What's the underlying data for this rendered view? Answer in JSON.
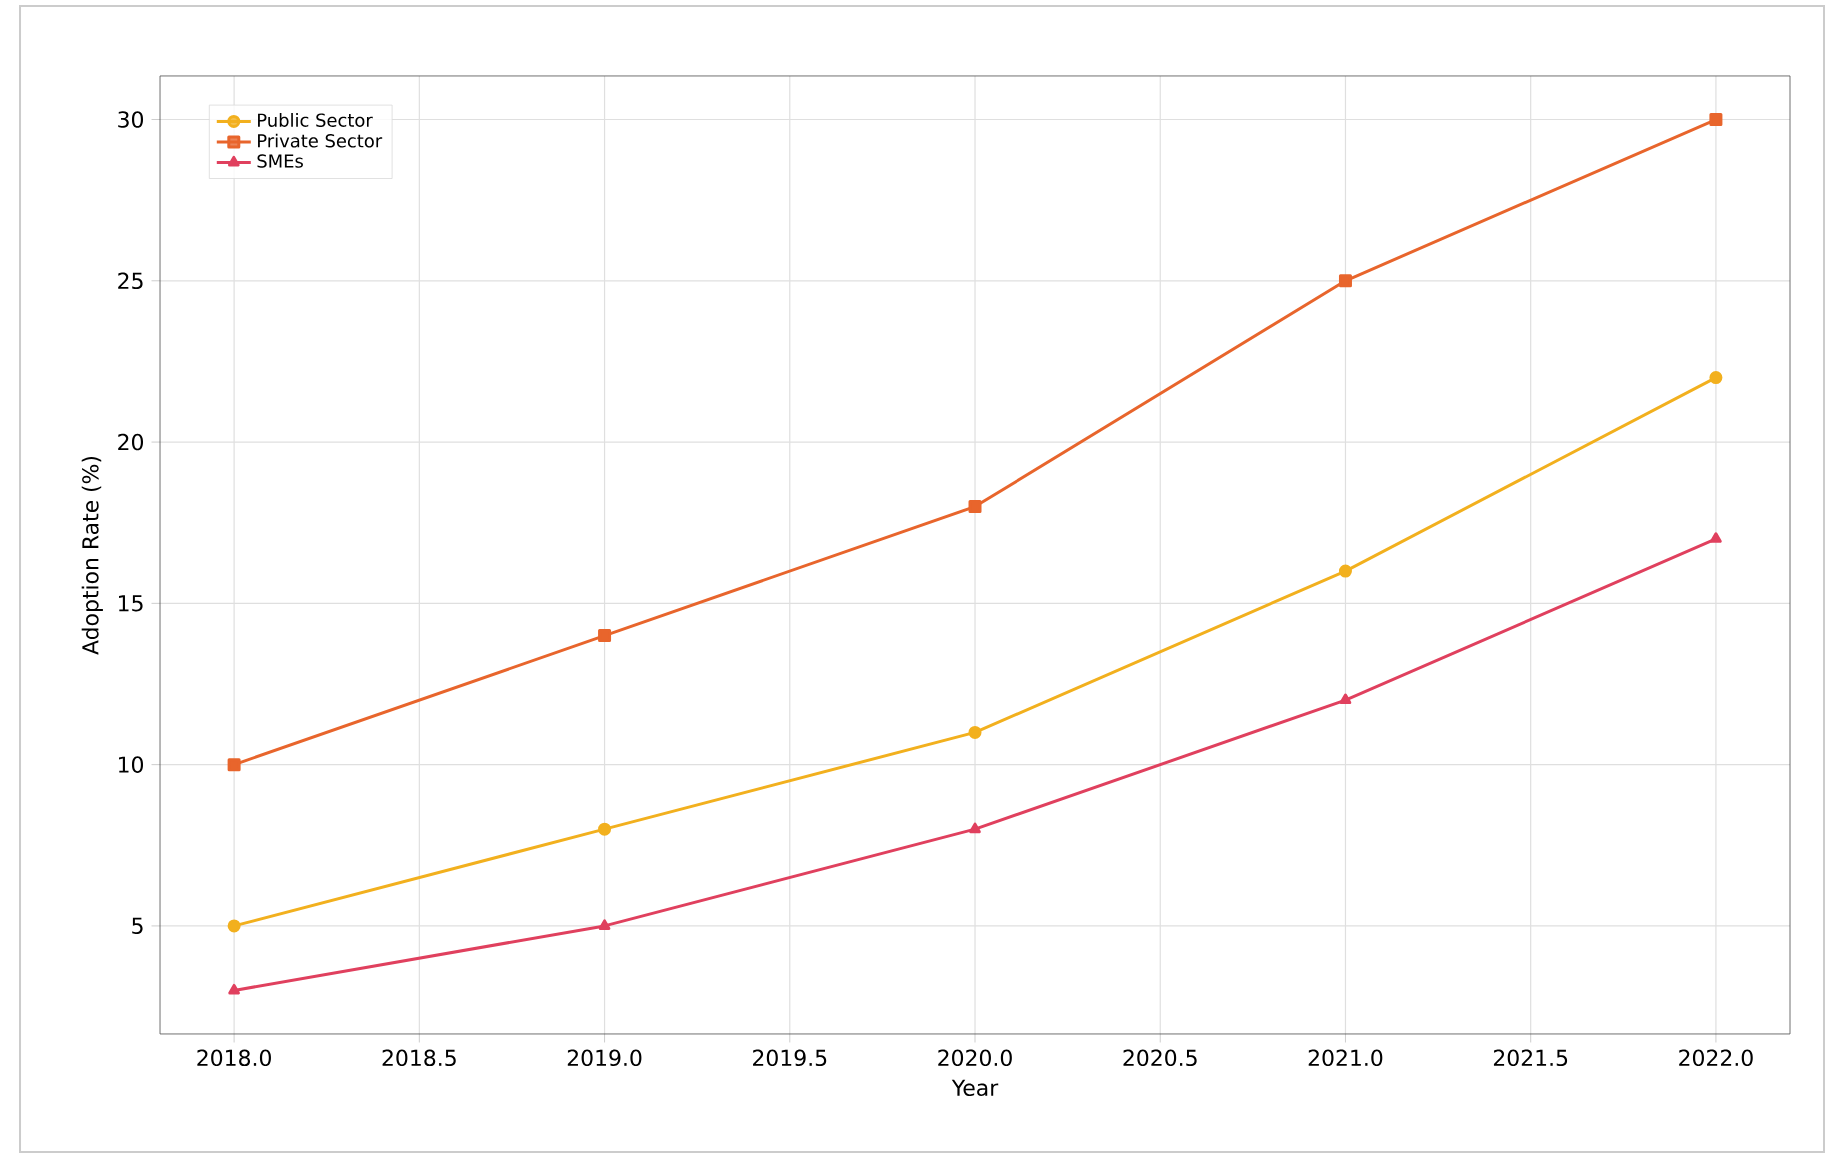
{
  "chart_data": {
    "type": "line",
    "xlabel": "Year",
    "ylabel": "Adoption Rate (%)",
    "x": [
      2018,
      2019,
      2020,
      2021,
      2022
    ],
    "series": [
      {
        "name": "Public Sector",
        "color": "#f2b01e",
        "marker": "circle",
        "values": [
          5,
          8,
          11,
          16,
          22
        ]
      },
      {
        "name": "Private Sector",
        "color": "#e8652c",
        "marker": "square",
        "values": [
          10,
          14,
          18,
          25,
          30
        ]
      },
      {
        "name": "SMEs",
        "color": "#e0405e",
        "marker": "triangle",
        "values": [
          3,
          5,
          8,
          12,
          17
        ]
      }
    ],
    "xlim": [
      2017.8,
      2022.2
    ],
    "ylim": [
      1.65,
      31.35
    ],
    "xticks": [
      {
        "value": 2018,
        "label": "2018.0"
      },
      {
        "value": 2018.5,
        "label": "2018.5"
      },
      {
        "value": 2019,
        "label": "2019.0"
      },
      {
        "value": 2019.5,
        "label": "2019.5"
      },
      {
        "value": 2020,
        "label": "2020.0"
      },
      {
        "value": 2020.5,
        "label": "2020.5"
      },
      {
        "value": 2021,
        "label": "2021.0"
      },
      {
        "value": 2021.5,
        "label": "2021.5"
      },
      {
        "value": 2022,
        "label": "2022.0"
      }
    ],
    "yticks": [
      5,
      10,
      15,
      20,
      25,
      30
    ],
    "grid": true,
    "legend": "top left",
    "line_style": "solid"
  }
}
